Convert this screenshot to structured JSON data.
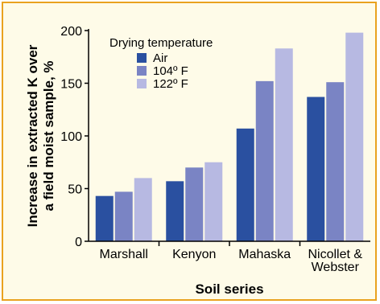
{
  "chart_data": {
    "type": "bar",
    "xlabel": "Soil series",
    "ylabel_lines": [
      "Increase in extracted K over",
      "a field moist sample, %"
    ],
    "ylim": [
      0,
      200
    ],
    "yticks": [
      0,
      50,
      100,
      150,
      200
    ],
    "categories": [
      [
        "Marshall"
      ],
      [
        "Kenyon"
      ],
      [
        "Mahaska"
      ],
      [
        "Nicollet &",
        "Webster"
      ]
    ],
    "legend_title": "Drying temperature",
    "legend_position": "top-left",
    "grid": false,
    "series": [
      {
        "name": "Air",
        "color": "#2a50a0",
        "values": [
          43,
          57,
          107,
          137
        ]
      },
      {
        "name": "104º F",
        "color": "#7a84c4",
        "values": [
          47,
          70,
          152,
          151
        ]
      },
      {
        "name": "122º F",
        "color": "#b7b9e2",
        "values": [
          60,
          75,
          183,
          198
        ]
      }
    ]
  }
}
